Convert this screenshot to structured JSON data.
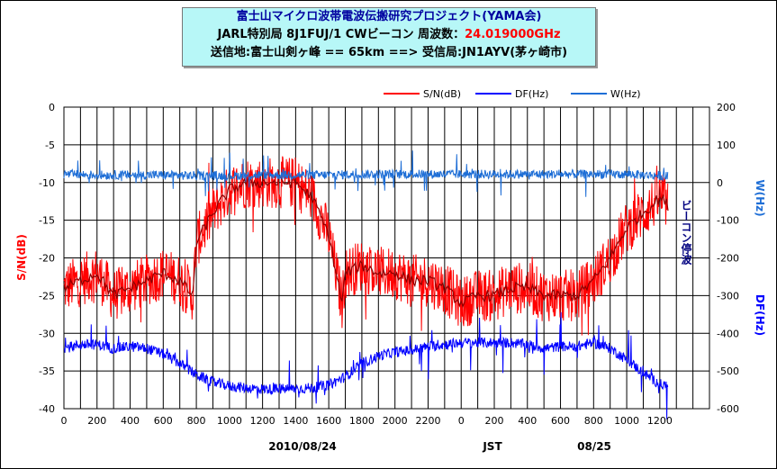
{
  "title": {
    "line1": "富士山マイクロ波帯電波伝搬研究プロジェクト(YAMA会)",
    "line2_prefix": "JARL特別局 8J1FUJ/1  CWビーコン 周波数：",
    "line2_freq": "24.019000GHz",
    "line3": "送信地:富士山剣ヶ峰 == 65km ==> 受信局:JN1AYV(茅ヶ崎市)"
  },
  "annotations": {
    "beacon_stop": "ビーコン停波",
    "date_left": "2010/08/24",
    "jst": "JST",
    "date_right": "08/25"
  },
  "colors": {
    "sn": "#ff0000",
    "sn_trend": "#8b0000",
    "df": "#0000ff",
    "w": "#1e6ed6",
    "title_bg": "#b7f7f7"
  },
  "chart_data": {
    "type": "line",
    "legend": [
      "S/N(dB)",
      "DF(Hz)",
      "W(Hz)"
    ],
    "legend_placement": "top-right",
    "xlabel": "",
    "x_ticks": [
      "0",
      "200",
      "400",
      "600",
      "800",
      "1000",
      "1200",
      "1400",
      "1600",
      "1800",
      "2000",
      "2200",
      "0",
      "200",
      "400",
      "600",
      "800",
      "1000",
      "1200"
    ],
    "y_left": {
      "label": "S/N(dB)",
      "ylim": [
        -40,
        0
      ],
      "ticks": [
        "0",
        "-5",
        "-10",
        "-15",
        "-20",
        "-25",
        "-30",
        "-35",
        "-40"
      ]
    },
    "y_right": {
      "label_w": "W(Hz)",
      "label_df": "DF(Hz)",
      "ylim": [
        -600,
        200
      ],
      "ticks": [
        "200",
        "100",
        "0",
        "-100",
        "-200",
        "-300",
        "-400",
        "-500",
        "-600"
      ]
    },
    "grid": true,
    "series": [
      {
        "name": "S/N(dB)",
        "axis": "left",
        "x": [
          0,
          100,
          200,
          300,
          400,
          500,
          600,
          700,
          780,
          800,
          900,
          1000,
          1100,
          1200,
          1300,
          1400,
          1500,
          1600,
          1680,
          1700,
          1800,
          1900,
          2000,
          2100,
          2200,
          2300,
          2400,
          2500,
          2600,
          2700,
          2800,
          2900,
          3000,
          3100,
          3200,
          3300,
          3400,
          3500,
          3600,
          3650
        ],
        "values": [
          -24,
          -23,
          -22,
          -25,
          -24,
          -23,
          -22,
          -23,
          -25,
          -18,
          -14,
          -11,
          -10,
          -10,
          -10,
          -10,
          -12,
          -17,
          -26,
          -22,
          -21,
          -22,
          -22,
          -23,
          -23,
          -24,
          -26,
          -25,
          -25,
          -24,
          -24,
          -25,
          -25,
          -25,
          -23,
          -20,
          -16,
          -14,
          -12,
          -13
        ]
      },
      {
        "name": "DF(Hz)",
        "axis": "right",
        "x": [
          0,
          100,
          200,
          300,
          400,
          500,
          600,
          700,
          800,
          900,
          1000,
          1100,
          1200,
          1300,
          1400,
          1500,
          1600,
          1700,
          1800,
          1900,
          2000,
          2100,
          2200,
          2300,
          2400,
          2500,
          2600,
          2700,
          2800,
          2900,
          3000,
          3100,
          3200,
          3300,
          3400,
          3500,
          3600,
          3650
        ],
        "values": [
          -440,
          -430,
          -430,
          -440,
          -435,
          -440,
          -455,
          -480,
          -510,
          -530,
          -540,
          -545,
          -548,
          -548,
          -547,
          -545,
          -537,
          -515,
          -480,
          -460,
          -450,
          -445,
          -435,
          -430,
          -425,
          -425,
          -425,
          -425,
          -430,
          -440,
          -435,
          -435,
          -425,
          -440,
          -470,
          -505,
          -535,
          -540
        ]
      },
      {
        "name": "W(Hz)",
        "axis": "right",
        "x": [
          0,
          200,
          400,
          600,
          800,
          1000,
          1200,
          1400,
          1600,
          1800,
          2000,
          2200,
          2400,
          2600,
          2800,
          3000,
          3200,
          3400,
          3600,
          3650
        ],
        "values": [
          22,
          20,
          20,
          20,
          18,
          18,
          20,
          20,
          20,
          22,
          22,
          22,
          22,
          22,
          22,
          22,
          22,
          22,
          18,
          16
        ]
      }
    ]
  }
}
